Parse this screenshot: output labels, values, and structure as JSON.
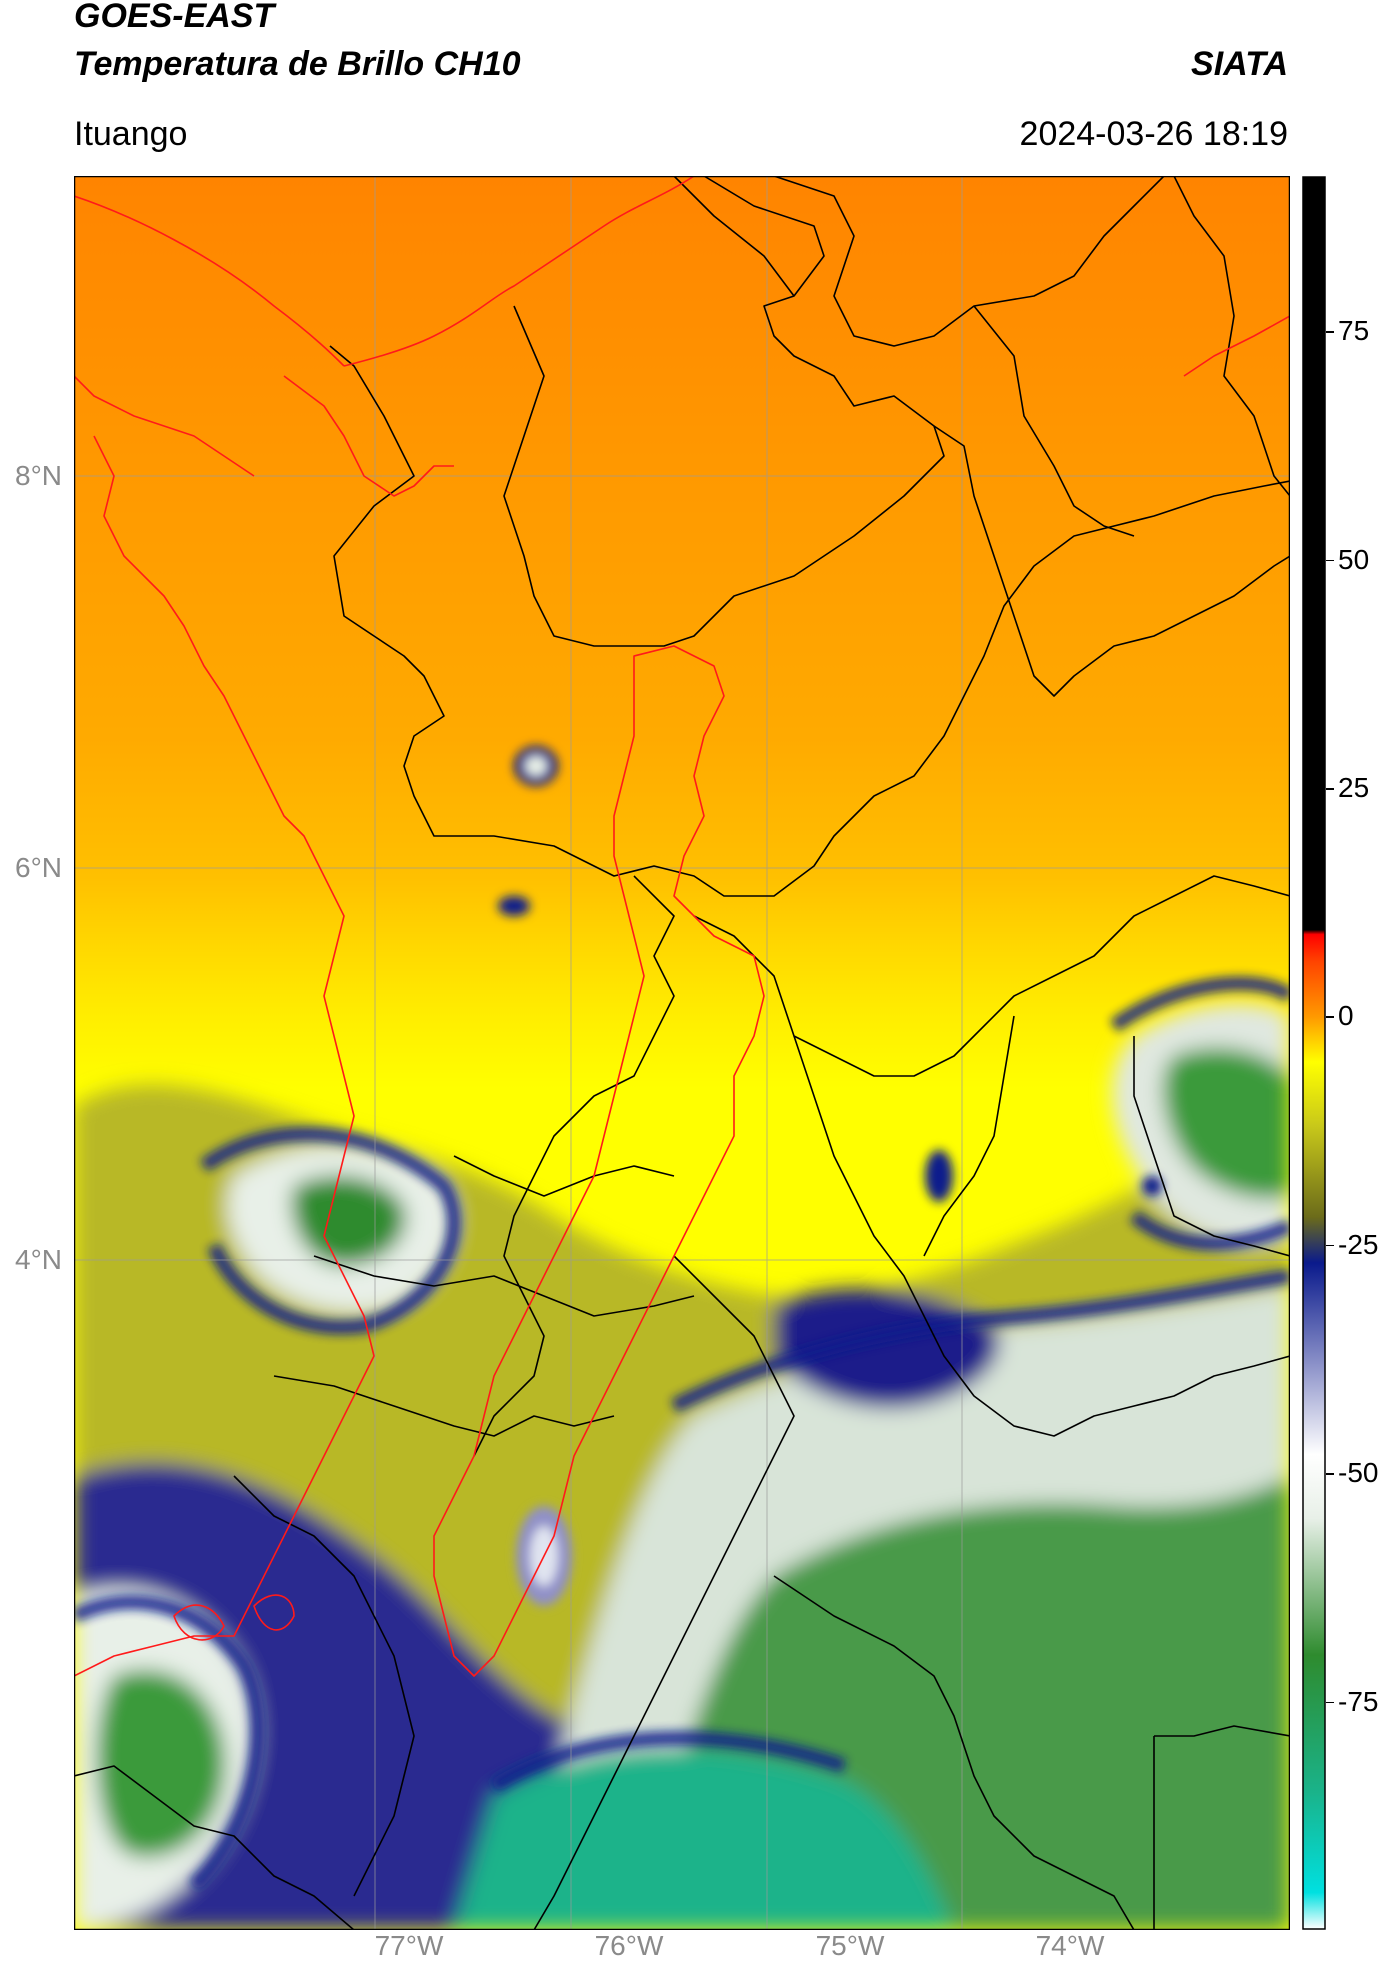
{
  "header": {
    "title_line1": "GOES-EAST",
    "title_line2": "Temperatura de Brillo CH10",
    "brand": "SIATA",
    "region": "Ituango",
    "datetime": "2024-03-26 18:19"
  },
  "map": {
    "lat_labels": [
      "8°N",
      "6°N",
      "4°N"
    ],
    "lon_labels": [
      "77°W",
      "76°W",
      "75°W",
      "74°W"
    ],
    "lat_range": [
      2.9,
      9.35
    ],
    "lon_range": [
      -78.5,
      -72.9
    ],
    "grid": true
  },
  "colorbar": {
    "ticks": [
      "75",
      "50",
      "25",
      "0",
      "-25",
      "-50",
      "-75"
    ],
    "tick_values": [
      75,
      50,
      25,
      0,
      -25,
      -50,
      -75
    ],
    "range": [
      -100,
      92
    ],
    "stops": [
      {
        "v": -100,
        "color": "#ffffff"
      },
      {
        "v": -96,
        "color": "#00e0e0"
      },
      {
        "v": -85,
        "color": "#1ab38a"
      },
      {
        "v": -70,
        "color": "#2e8b2e"
      },
      {
        "v": -55,
        "color": "#e8f0e8"
      },
      {
        "v": -48,
        "color": "#ffffff"
      },
      {
        "v": -38,
        "color": "#8a90c8"
      },
      {
        "v": -27,
        "color": "#0a1a8c"
      },
      {
        "v": -22,
        "color": "#6b6b1a"
      },
      {
        "v": -12,
        "color": "#c8c81a"
      },
      {
        "v": -5,
        "color": "#ffff00"
      },
      {
        "v": 0,
        "color": "#ff9900"
      },
      {
        "v": 6,
        "color": "#ff4400"
      },
      {
        "v": 9,
        "color": "#ff0000"
      },
      {
        "v": 9.5,
        "color": "#000000"
      },
      {
        "v": 92,
        "color": "#000000"
      }
    ],
    "colors": {
      "field_warm": "#ff8c00",
      "field_mid": "#ffcc00",
      "field_yellow": "#ffff00",
      "olive": "#b8b820",
      "navy": "#0a1a8c",
      "green": "#2e8b2e",
      "teal": "#1ab38a",
      "boundary": "#000000",
      "basin": "#ff0000"
    }
  }
}
